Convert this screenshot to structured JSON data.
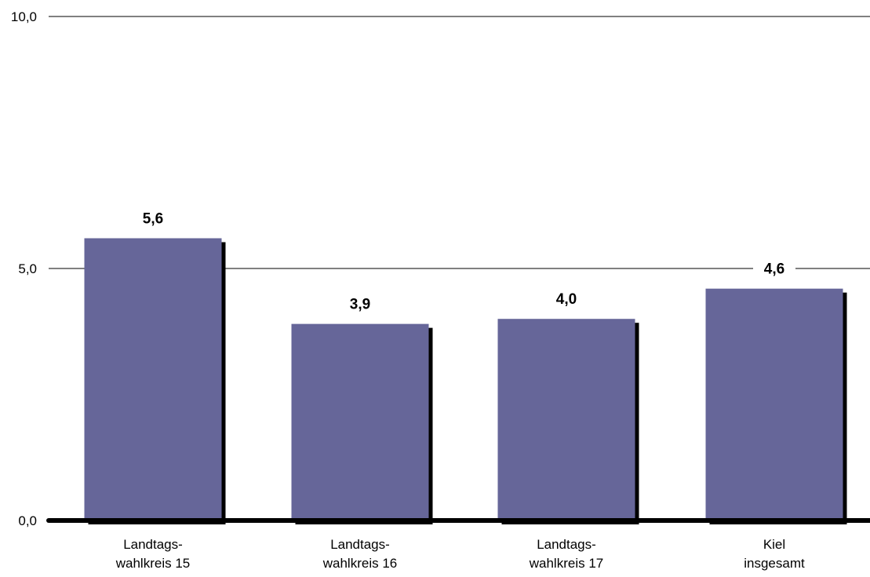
{
  "chart_data": {
    "type": "bar",
    "categories": [
      [
        "Landtags-",
        "wahlkreis 15"
      ],
      [
        "Landtags-",
        "wahlkreis 16"
      ],
      [
        "Landtags-",
        "wahlkreis 17"
      ],
      [
        "Kiel",
        "insgesamt"
      ]
    ],
    "values": [
      5.6,
      3.9,
      4.0,
      4.6
    ],
    "value_labels": [
      "5,6",
      "3,9",
      "4,0",
      "4,6"
    ],
    "y_ticks": [
      {
        "value": 0,
        "label": "0,0"
      },
      {
        "value": 5,
        "label": "5,0"
      },
      {
        "value": 10,
        "label": "10,0"
      }
    ],
    "ylim": [
      0,
      10
    ],
    "grid": true,
    "legend": "none",
    "title": "",
    "xlabel": "",
    "ylabel": ""
  },
  "colors": {
    "bar": "#666699",
    "shadow": "#000000",
    "grid": "#000000",
    "axis": "#000000"
  }
}
